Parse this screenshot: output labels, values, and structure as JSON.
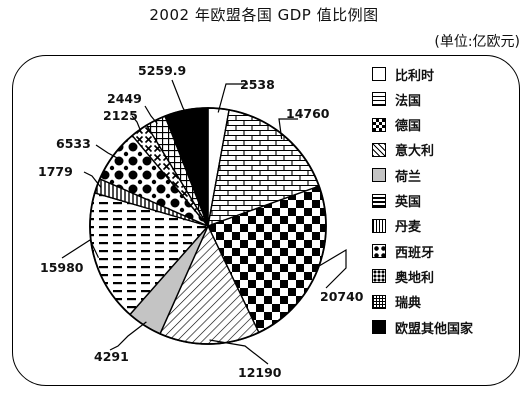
{
  "chart_data": {
    "type": "pie",
    "title": "2002 年欧盟各国 GDP 值比例图",
    "unit": "(单位:亿欧元)",
    "legend_position": "right",
    "slices": [
      {
        "name": "比利时",
        "value": 2538,
        "pattern": "white"
      },
      {
        "name": "法国",
        "value": 14760,
        "pattern": "brick"
      },
      {
        "name": "德国",
        "value": 20740,
        "pattern": "checker"
      },
      {
        "name": "意大利",
        "value": 12190,
        "pattern": "diagonal"
      },
      {
        "name": "荷兰",
        "value": 4291,
        "pattern": "light-gray"
      },
      {
        "name": "英国",
        "value": 15980,
        "pattern": "bars"
      },
      {
        "name": "丹麦",
        "value": 1779,
        "pattern": "vertical-lines"
      },
      {
        "name": "西班牙",
        "value": 6533,
        "pattern": "dots"
      },
      {
        "name": "奥地利",
        "value": 2125,
        "pattern": "x-dots"
      },
      {
        "name": "瑞典",
        "value": 2449,
        "pattern": "grid"
      },
      {
        "name": "欧盟其他国家",
        "value": 5259.9,
        "pattern": "black"
      }
    ]
  }
}
